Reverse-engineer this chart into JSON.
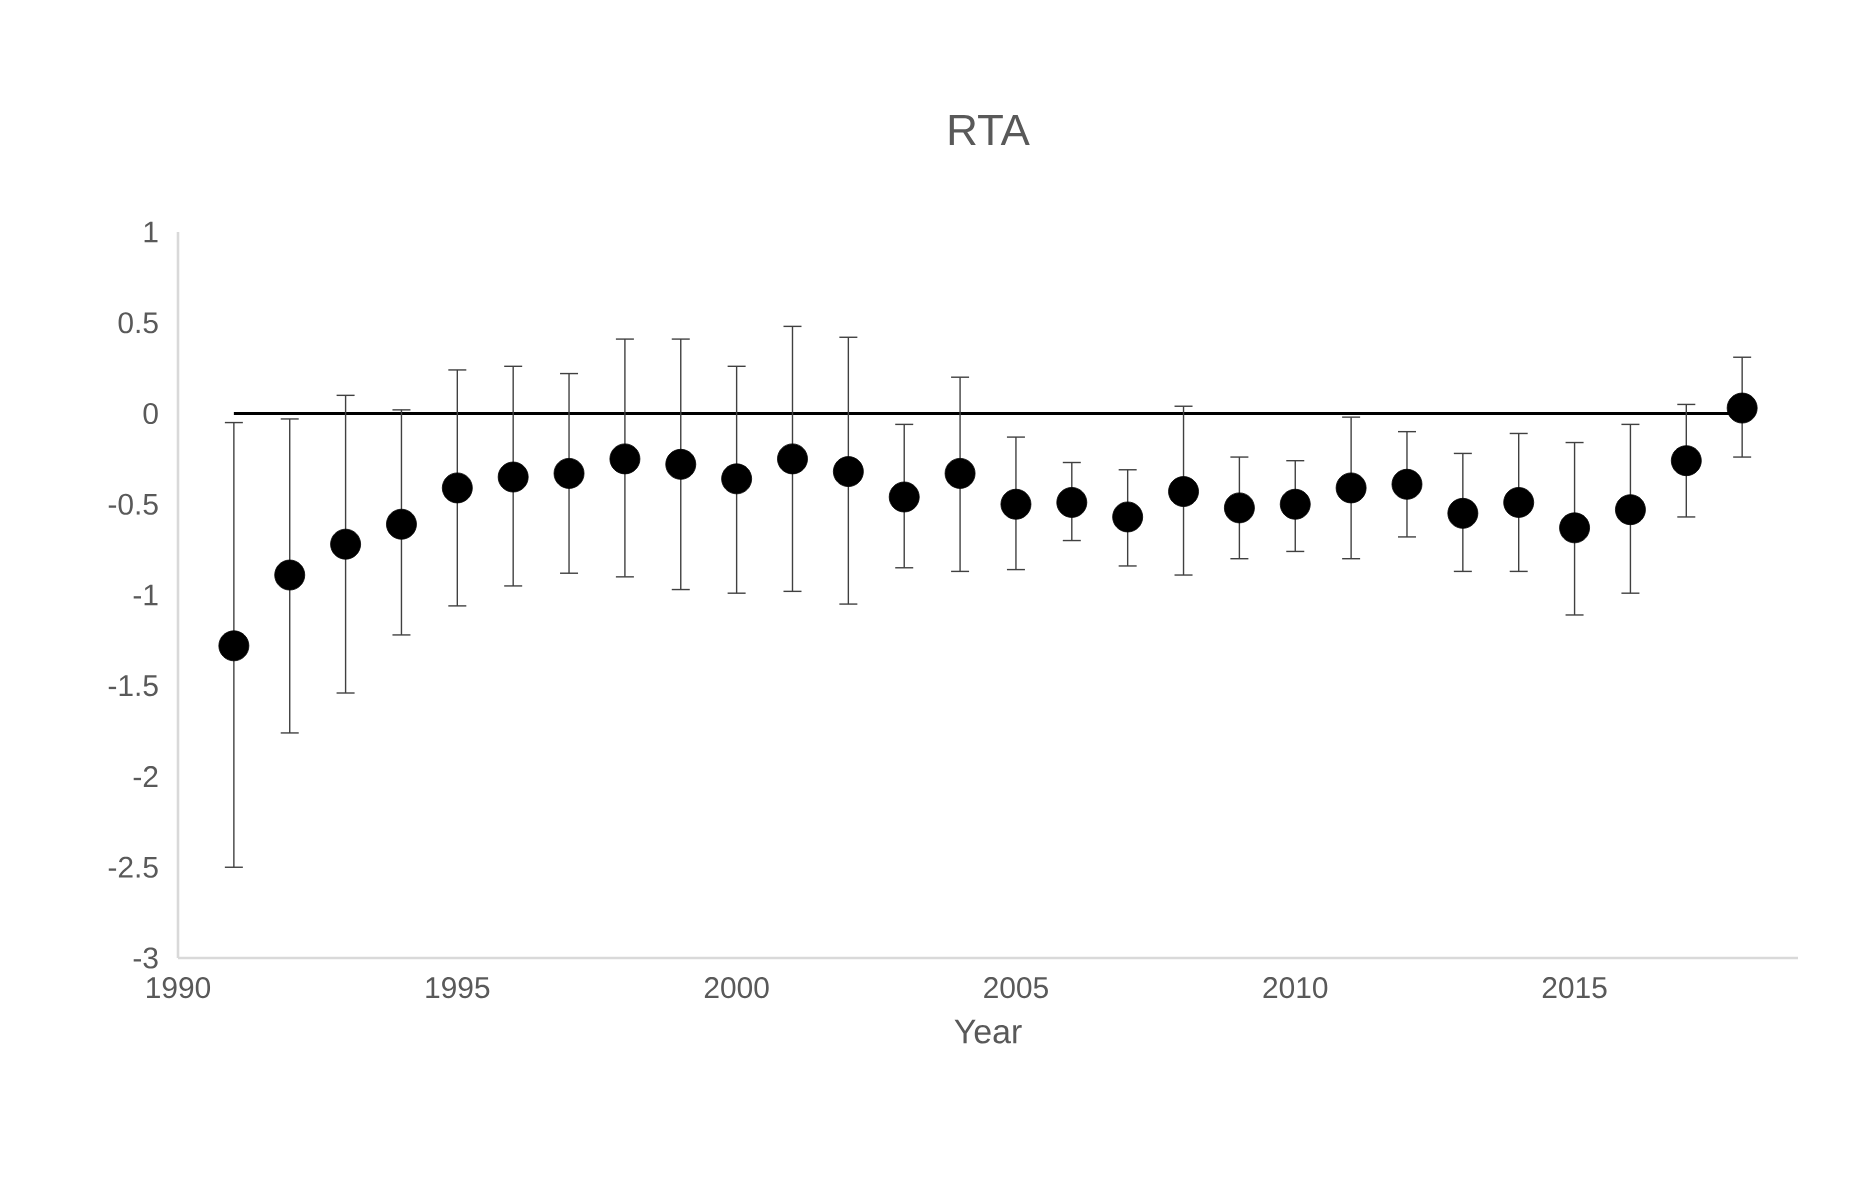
{
  "chart_data": {
    "type": "scatter",
    "title": "RTA",
    "xlabel": "Year",
    "xlim": [
      1990,
      2019
    ],
    "xticks": [
      1990,
      1995,
      2000,
      2005,
      2010,
      2015
    ],
    "ylim": [
      -3,
      1
    ],
    "yticks": [
      -3,
      -2.5,
      -2,
      -1.5,
      -1,
      -0.5,
      0,
      0.5,
      1
    ],
    "series": [
      {
        "color": "#000000",
        "marker": "circle",
        "x": [
          1991,
          1992,
          1993,
          1994,
          1995,
          1996,
          1997,
          1998,
          1999,
          2000,
          2001,
          2002,
          2003,
          2004,
          2005,
          2006,
          2007,
          2008,
          2009,
          2010,
          2011,
          2012,
          2013,
          2014,
          2015,
          2016,
          2017,
          2018
        ],
        "values": [
          -1.28,
          -0.89,
          -0.72,
          -0.61,
          -0.41,
          -0.35,
          -0.33,
          -0.25,
          -0.28,
          -0.36,
          -0.25,
          -0.32,
          -0.46,
          -0.33,
          -0.5,
          -0.49,
          -0.57,
          -0.43,
          -0.52,
          -0.5,
          -0.41,
          -0.39,
          -0.55,
          -0.49,
          -0.63,
          -0.53,
          -0.26,
          0.03
        ],
        "errors": [
          [
            -2.5,
            -0.05
          ],
          [
            -1.76,
            -0.03
          ],
          [
            -1.54,
            0.1
          ],
          [
            -1.22,
            0.02
          ],
          [
            -1.06,
            0.24
          ],
          [
            -0.95,
            0.26
          ],
          [
            -0.88,
            0.22
          ],
          [
            -0.9,
            0.41
          ],
          [
            -0.97,
            0.41
          ],
          [
            -0.99,
            0.26
          ],
          [
            -0.98,
            0.48
          ],
          [
            -1.05,
            0.42
          ],
          [
            -0.85,
            -0.06
          ],
          [
            -0.87,
            0.2
          ],
          [
            -0.86,
            -0.13
          ],
          [
            -0.7,
            -0.27
          ],
          [
            -0.84,
            -0.31
          ],
          [
            -0.89,
            0.04
          ],
          [
            -0.8,
            -0.24
          ],
          [
            -0.76,
            -0.26
          ],
          [
            -0.8,
            -0.02
          ],
          [
            -0.68,
            -0.1
          ],
          [
            -0.87,
            -0.22
          ],
          [
            -0.87,
            -0.11
          ],
          [
            -1.11,
            -0.16
          ],
          [
            -0.99,
            -0.06
          ],
          [
            -0.57,
            0.05
          ],
          [
            -0.24,
            0.31
          ]
        ]
      },
      {
        "type": "line",
        "color": "#000000",
        "marker": "none",
        "line_style": "solid",
        "x": [
          1991,
          2018
        ],
        "values": [
          0,
          0
        ]
      }
    ]
  }
}
